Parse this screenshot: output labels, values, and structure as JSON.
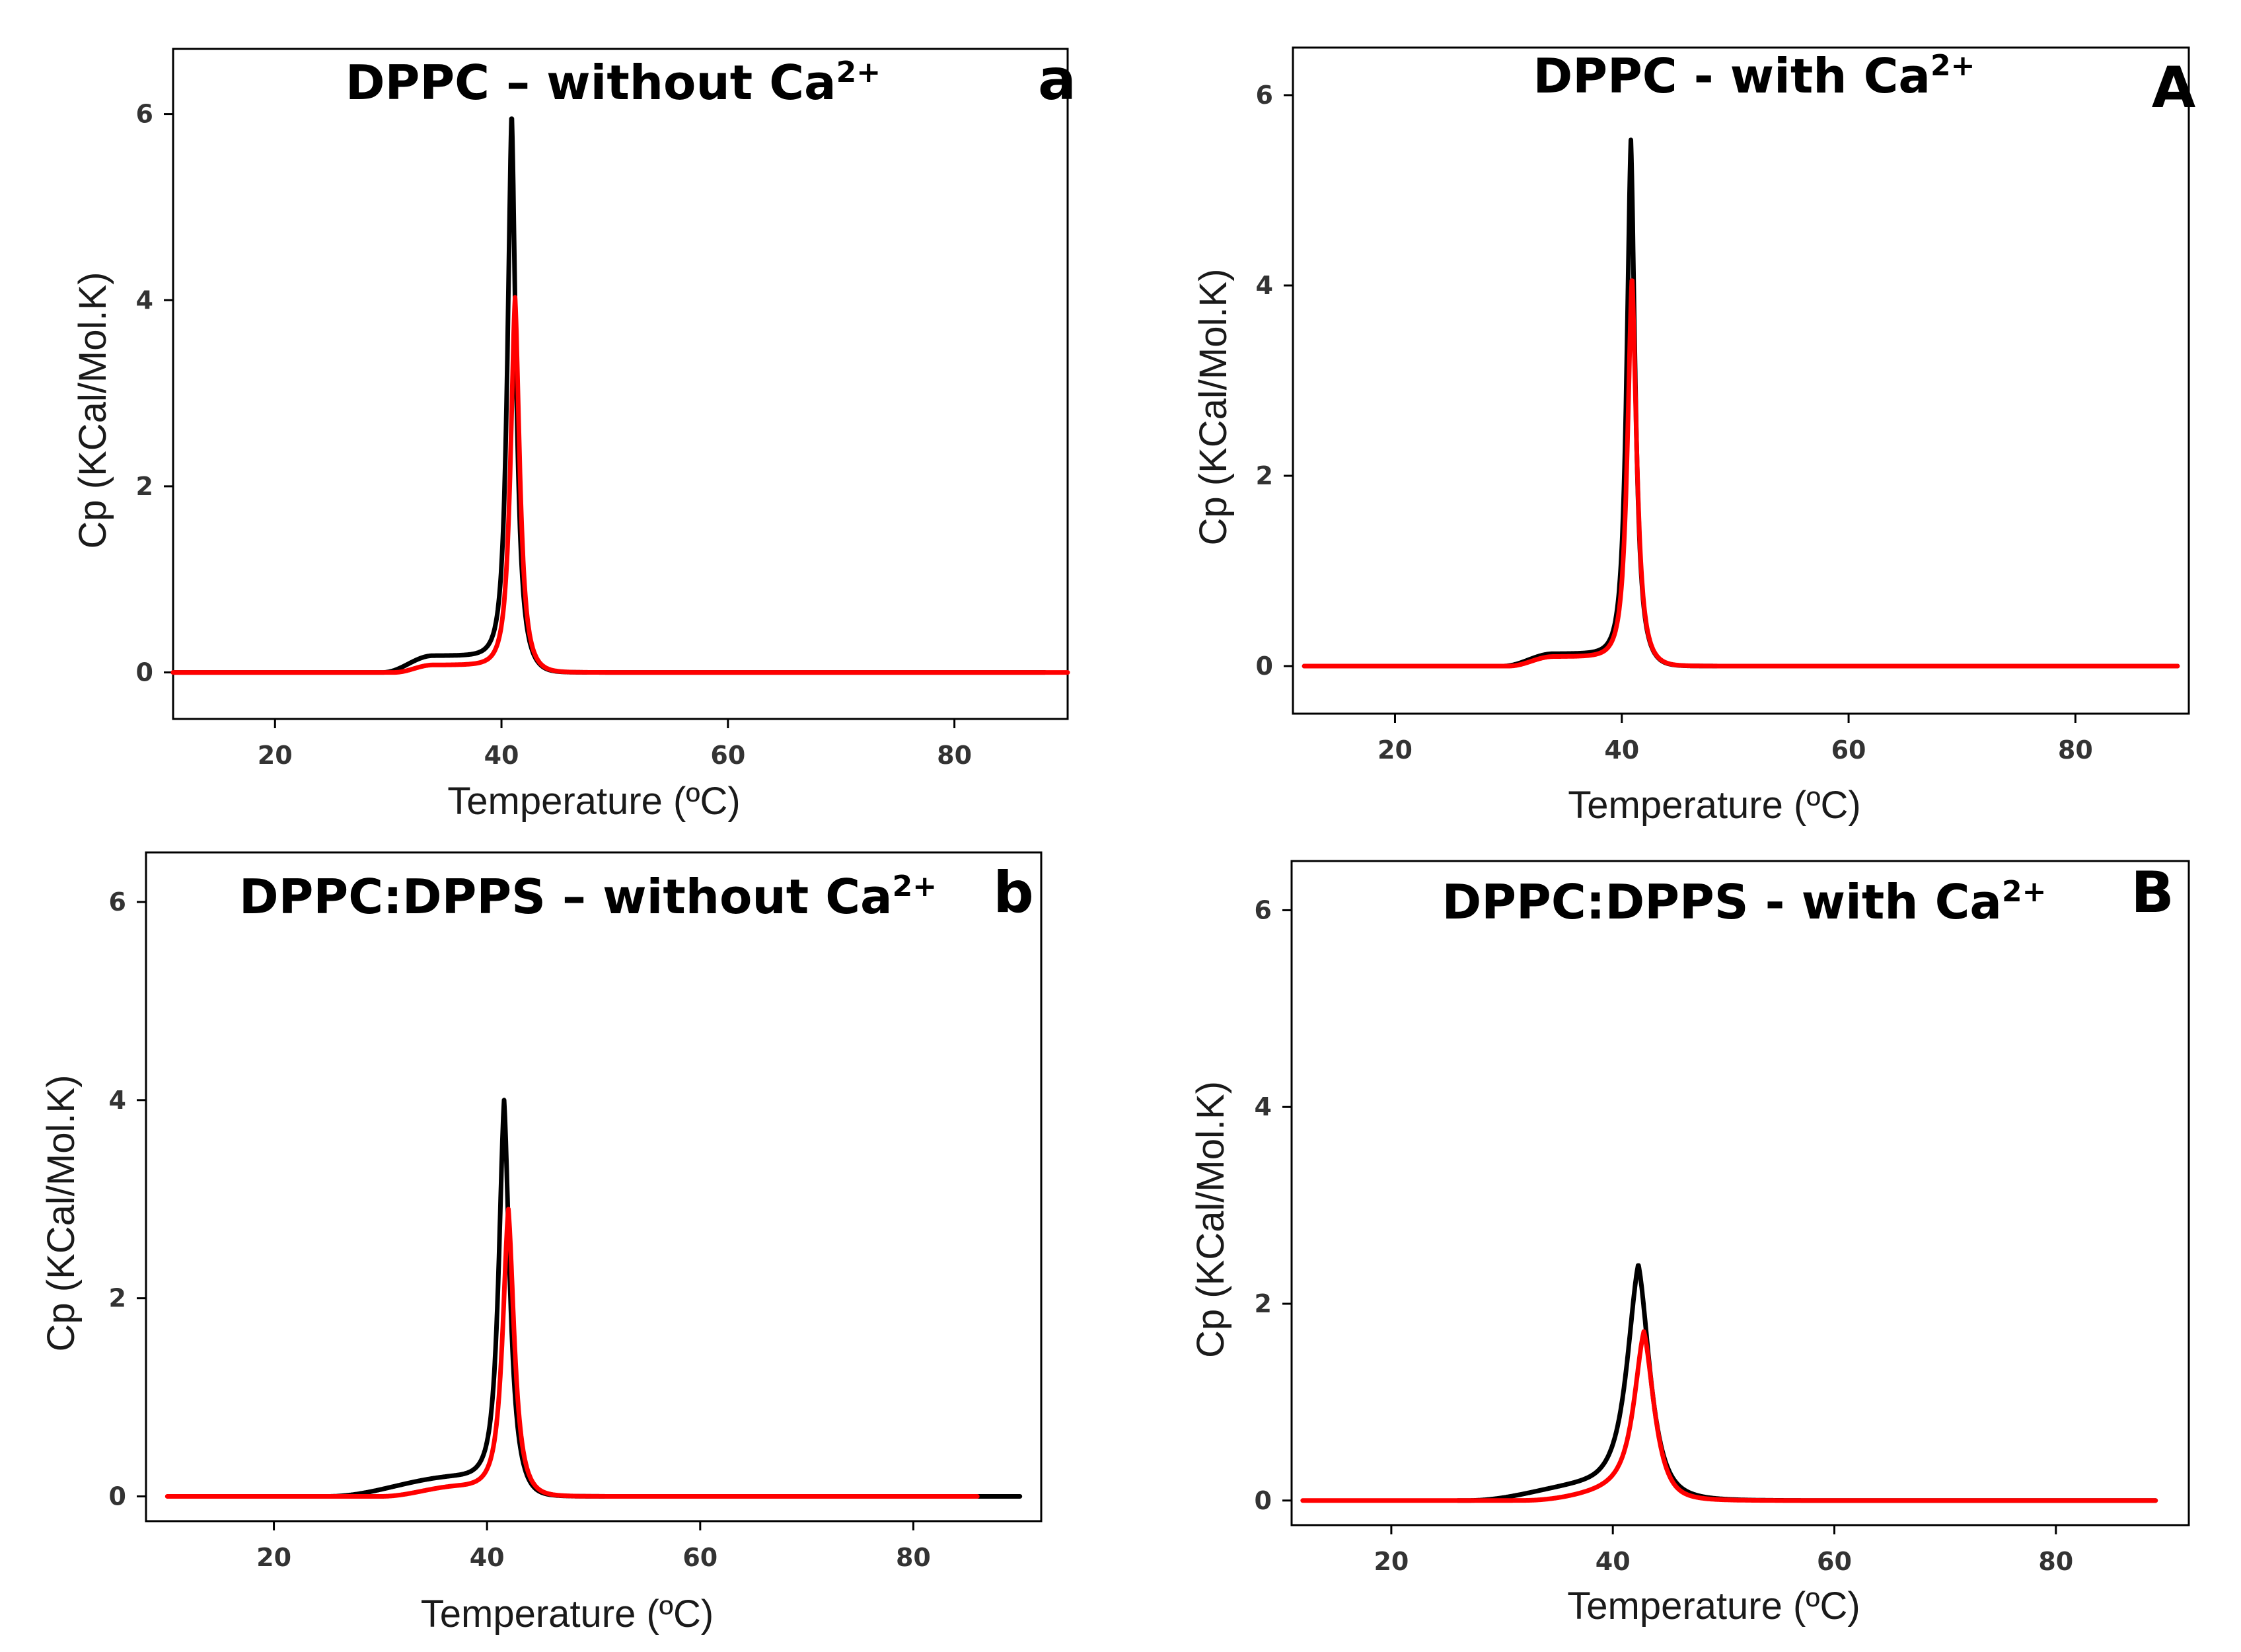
{
  "chart_data": [
    {
      "type": "line",
      "panel_letter": "a",
      "title_main": "DPPC – without Ca",
      "title_sup": "2+",
      "xlabel": "Temperature (ºC)",
      "ylabel": "Cp (KCal/Mol.K)",
      "xlim": [
        11,
        90
      ],
      "ylim": [
        -0.5,
        6.7
      ],
      "xticks": [
        20,
        40,
        60,
        80
      ],
      "yticks": [
        0,
        2,
        4,
        6
      ],
      "grid": false,
      "series": [
        {
          "name": "black",
          "color": "#000000",
          "x_range": [
            11,
            88
          ],
          "peak_x": 40.9,
          "peak_y": 5.85,
          "peak_width": 0.55,
          "shoulder_x": 34.0,
          "shoulder_y": 0.18,
          "shoulder_start": 29.5
        },
        {
          "name": "red",
          "color": "#ff0000",
          "x_range": [
            11,
            90
          ],
          "peak_x": 41.2,
          "peak_y": 3.95,
          "peak_width": 0.6,
          "shoulder_x": 34.0,
          "shoulder_y": 0.08,
          "shoulder_start": 30.5
        }
      ]
    },
    {
      "type": "line",
      "panel_letter": "A",
      "title_main": "DPPC - with Ca",
      "title_sup": "2+",
      "xlabel": "Temperature (ºC)",
      "ylabel": "Cp (KCal/Mol.K)",
      "xlim": [
        11,
        90
      ],
      "ylim": [
        -0.5,
        6.5
      ],
      "xticks": [
        20,
        40,
        60,
        80
      ],
      "yticks": [
        0,
        2,
        4,
        6
      ],
      "grid": false,
      "series": [
        {
          "name": "black",
          "color": "#000000",
          "x_range": [
            12,
            89
          ],
          "peak_x": 40.8,
          "peak_y": 5.4,
          "peak_width": 0.55,
          "shoulder_x": 34.0,
          "shoulder_y": 0.13,
          "shoulder_start": 29.5
        },
        {
          "name": "red",
          "color": "#ff0000",
          "x_range": [
            12,
            89
          ],
          "peak_x": 40.9,
          "peak_y": 4.0,
          "peak_width": 0.6,
          "shoulder_x": 34.0,
          "shoulder_y": 0.1,
          "shoulder_start": 30.0
        }
      ]
    },
    {
      "type": "line",
      "panel_letter": "b",
      "title_main": "DPPC:DPPS – without Ca",
      "title_sup": "2+",
      "xlabel": "Temperature (ºC)",
      "ylabel": "Cp (KCal/Mol.K)",
      "xlim": [
        8,
        92
      ],
      "ylim": [
        -0.25,
        6.5
      ],
      "xticks": [
        20,
        40,
        60,
        80
      ],
      "yticks": [
        0,
        2,
        4,
        6
      ],
      "grid": false,
      "series": [
        {
          "name": "black",
          "color": "#000000",
          "x_range": [
            22,
            90
          ],
          "peak_x": 41.6,
          "peak_y": 3.8,
          "peak_width": 0.75,
          "shoulder_x": 37.5,
          "shoulder_y": 0.2,
          "shoulder_start": 25.0
        },
        {
          "name": "red",
          "color": "#ff0000",
          "x_range": [
            10,
            86
          ],
          "peak_x": 42.0,
          "peak_y": 2.8,
          "peak_width": 0.8,
          "shoulder_x": 37.5,
          "shoulder_y": 0.1,
          "shoulder_start": 30.0
        }
      ]
    },
    {
      "type": "line",
      "panel_letter": "B",
      "title_main": "DPPC:DPPS - with Ca",
      "title_sup": "2+",
      "xlabel": "Temperature (ºC)",
      "ylabel": "Cp (KCal/Mol.K)",
      "xlim": [
        11,
        92
      ],
      "ylim": [
        -0.25,
        6.5
      ],
      "xticks": [
        20,
        40,
        60,
        80
      ],
      "yticks": [
        0,
        2,
        4,
        6
      ],
      "grid": false,
      "series": [
        {
          "name": "black",
          "color": "#000000",
          "x_range": [
            26,
            89
          ],
          "peak_x": 42.3,
          "peak_y": 2.25,
          "peak_width": 1.5,
          "shoulder_x": 38.0,
          "shoulder_y": 0.15,
          "shoulder_start": 27.0
        },
        {
          "name": "red",
          "color": "#ff0000",
          "x_range": [
            12,
            89
          ],
          "peak_x": 42.8,
          "peak_y": 1.55,
          "peak_width": 1.3,
          "shoulder_x": 45.0,
          "shoulder_y": 0.18,
          "shoulder_start": 32.0
        }
      ]
    }
  ]
}
